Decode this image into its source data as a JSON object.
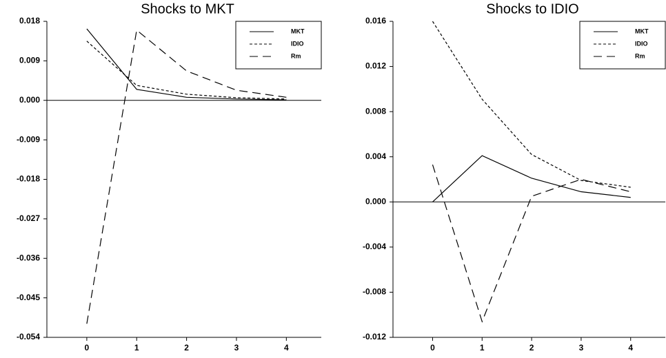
{
  "chart_data": [
    {
      "type": "line",
      "title": "Shocks to MKT",
      "x": [
        0,
        1,
        2,
        3,
        4
      ],
      "xlim": [
        -0.8,
        4.7
      ],
      "xticks": [
        0,
        1,
        2,
        3,
        4
      ],
      "ylim": [
        -0.054,
        0.018
      ],
      "yticks": [
        0.018,
        0.009,
        {
          "value": 0,
          "label": "0.000"
        },
        -0.009,
        -0.018,
        -0.027,
        -0.036,
        -0.045,
        -0.054
      ],
      "legend": "upper right",
      "series": [
        {
          "name": "MKT",
          "color": "#000000",
          "dash": "solid",
          "values": [
            0.0163,
            0.0025,
            0.0007,
            0.0003,
            0.0001
          ]
        },
        {
          "name": "IDIO",
          "color": "#000000",
          "dash": "short",
          "values": [
            0.0135,
            0.0034,
            0.0014,
            0.0006,
            0.0003
          ]
        },
        {
          "name": "Rm",
          "color": "#000000",
          "dash": "long",
          "values": [
            -0.0509,
            0.016,
            0.0067,
            0.0023,
            0.0007
          ]
        }
      ]
    },
    {
      "type": "line",
      "title": "Shocks to IDIO",
      "x": [
        0,
        1,
        2,
        3,
        4
      ],
      "xlim": [
        -0.8,
        4.7
      ],
      "xticks": [
        0,
        1,
        2,
        3,
        4
      ],
      "ylim": [
        -0.012,
        0.016
      ],
      "yticks": [
        0.016,
        0.012,
        0.008,
        0.004,
        {
          "value": 0,
          "label": "0.000"
        },
        -0.004,
        -0.008,
        -0.012
      ],
      "legend": "upper right",
      "series": [
        {
          "name": "MKT",
          "color": "#000000",
          "dash": "solid",
          "values": [
            0.0,
            0.0041,
            0.0021,
            0.0009,
            0.0004
          ]
        },
        {
          "name": "IDIO",
          "color": "#000000",
          "dash": "short",
          "values": [
            0.016,
            0.0091,
            0.0042,
            0.0019,
            0.0013
          ]
        },
        {
          "name": "Rm",
          "color": "#000000",
          "dash": "long",
          "values": [
            0.0033,
            -0.0106,
            0.0005,
            0.002,
            0.0009
          ]
        }
      ]
    }
  ]
}
